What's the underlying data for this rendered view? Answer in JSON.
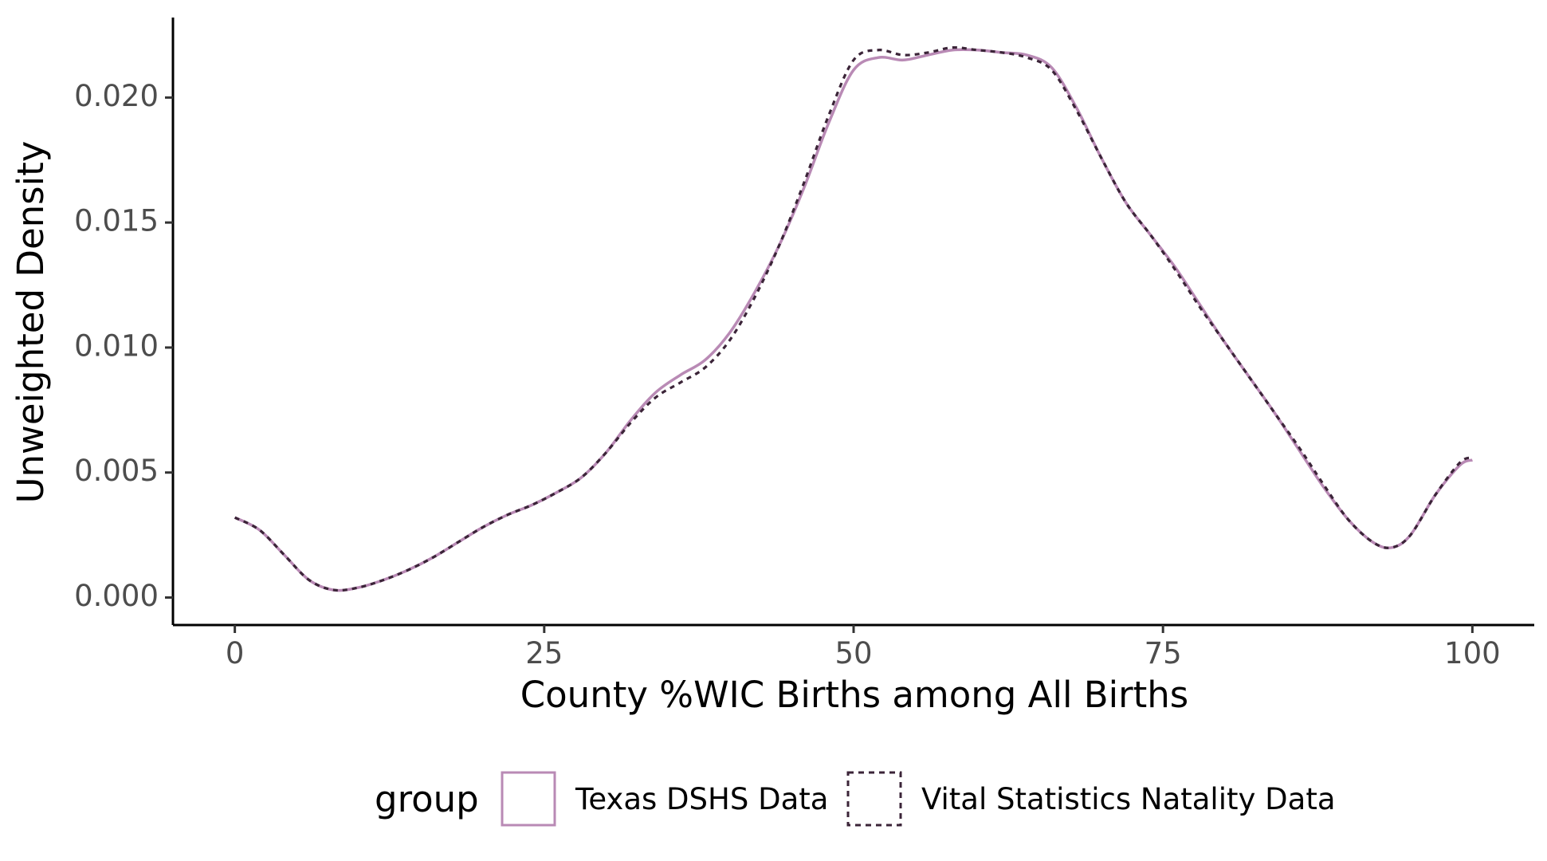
{
  "chart_data": {
    "type": "line",
    "title": "",
    "xlabel": "County %WIC Births among All Births",
    "ylabel": "Unweighted Density",
    "xlim": [
      -5,
      105
    ],
    "ylim": [
      -0.0011,
      0.0232
    ],
    "xticks": [
      0,
      25,
      50,
      75,
      100
    ],
    "xtick_labels": [
      "0",
      "25",
      "50",
      "75",
      "100"
    ],
    "yticks": [
      0,
      0.005,
      0.01,
      0.015,
      0.02
    ],
    "ytick_labels": [
      "0.000",
      "0.005",
      "0.010",
      "0.015",
      "0.020"
    ],
    "grid": false,
    "legend": {
      "title": "group",
      "position": "bottom",
      "entries": [
        "Texas DSHS Data",
        "Vital Statistics Natality Data"
      ]
    },
    "series": [
      {
        "name": "Texas DSHS Data",
        "color": "#b98ab5",
        "dash": "solid",
        "x": [
          0,
          2,
          4,
          6,
          8,
          10,
          12,
          14,
          16,
          18,
          20,
          22,
          24,
          26,
          28,
          30,
          32,
          34,
          36,
          38,
          40,
          42,
          44,
          46,
          48,
          50,
          52,
          54,
          56,
          58,
          60,
          62,
          64,
          66,
          68,
          70,
          72,
          74,
          76,
          78,
          80,
          82,
          84,
          86,
          88,
          90,
          92,
          93.5,
          95,
          97,
          99,
          100
        ],
        "y": [
          0.0032,
          0.0027,
          0.0017,
          0.0007,
          0.0003,
          0.0004,
          0.0007,
          0.0011,
          0.0016,
          0.0022,
          0.0028,
          0.0033,
          0.0037,
          0.0042,
          0.0048,
          0.0058,
          0.0071,
          0.0082,
          0.0089,
          0.0095,
          0.0106,
          0.0122,
          0.0141,
          0.0164,
          0.019,
          0.0211,
          0.0216,
          0.0215,
          0.0217,
          0.0219,
          0.0219,
          0.0218,
          0.0217,
          0.0212,
          0.0196,
          0.0176,
          0.0158,
          0.0145,
          0.0132,
          0.0117,
          0.0102,
          0.0088,
          0.0074,
          0.0059,
          0.0044,
          0.0031,
          0.0022,
          0.002,
          0.0025,
          0.0041,
          0.0053,
          0.0055
        ]
      },
      {
        "name": "Vital Statistics Natality Data",
        "color": "#3b2438",
        "dash": "dotted",
        "x": [
          0,
          2,
          4,
          6,
          8,
          10,
          12,
          14,
          16,
          18,
          20,
          22,
          24,
          26,
          28,
          30,
          32,
          34,
          36,
          38,
          40,
          42,
          44,
          46,
          48,
          50,
          52,
          54,
          56,
          58,
          60,
          62,
          64,
          66,
          68,
          70,
          72,
          74,
          76,
          78,
          80,
          82,
          84,
          86,
          88,
          90,
          92,
          93.5,
          95,
          97,
          99,
          100
        ],
        "y": [
          0.0032,
          0.0027,
          0.0017,
          0.0007,
          0.0003,
          0.0004,
          0.0007,
          0.0011,
          0.0016,
          0.0022,
          0.0028,
          0.0033,
          0.0037,
          0.0042,
          0.0048,
          0.0058,
          0.007,
          0.008,
          0.0086,
          0.0092,
          0.0103,
          0.012,
          0.0141,
          0.0166,
          0.0193,
          0.0215,
          0.0219,
          0.0217,
          0.0218,
          0.022,
          0.0219,
          0.0218,
          0.0216,
          0.0211,
          0.0195,
          0.0176,
          0.0158,
          0.0145,
          0.0131,
          0.0116,
          0.0102,
          0.0088,
          0.0074,
          0.006,
          0.0045,
          0.0031,
          0.0022,
          0.002,
          0.0025,
          0.0041,
          0.0054,
          0.0056
        ]
      }
    ]
  }
}
